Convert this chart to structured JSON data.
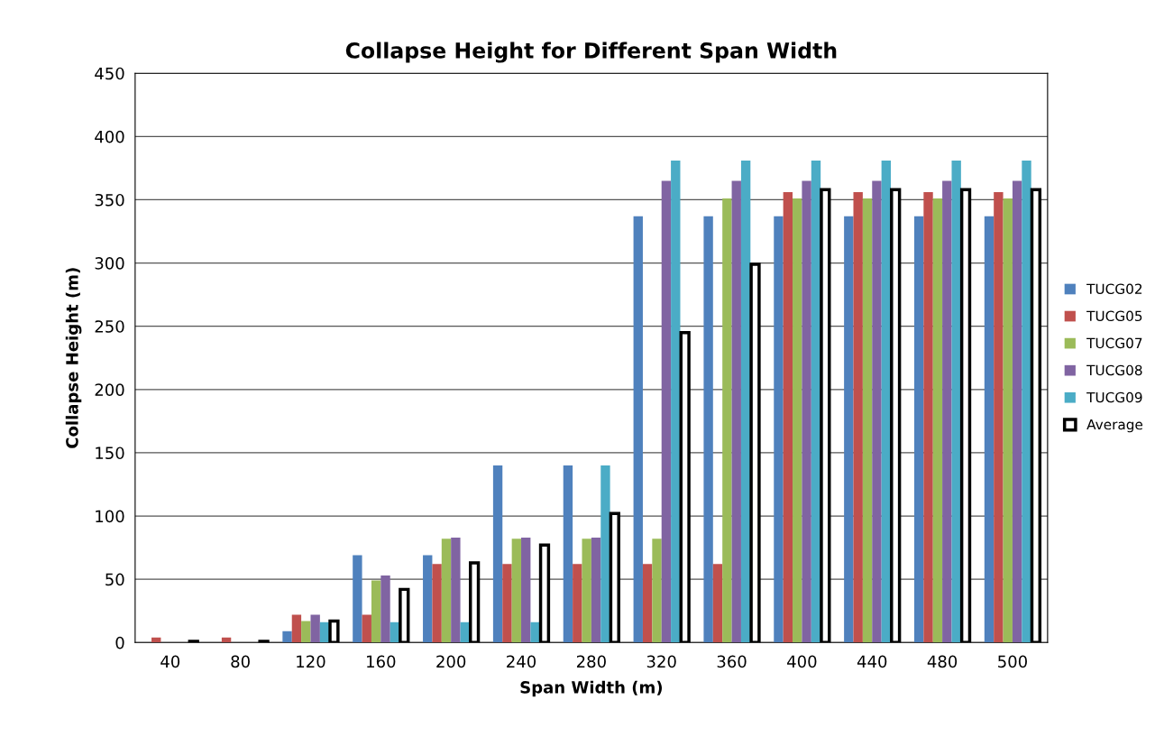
{
  "chart_data": {
    "type": "bar",
    "title": "Collapse Height for Different Span Width",
    "xlabel": "Span Width (m)",
    "ylabel": "Collapse Height (m)",
    "categories": [
      "40",
      "80",
      "120",
      "160",
      "200",
      "240",
      "280",
      "320",
      "360",
      "400",
      "440",
      "480",
      "500"
    ],
    "series": [
      {
        "name": "TUCG02",
        "color": "#4f81bd",
        "values": [
          0,
          0,
          9,
          69,
          69,
          140,
          140,
          337,
          337,
          337,
          337,
          337,
          337
        ]
      },
      {
        "name": "TUCG05",
        "color": "#c0504d",
        "values": [
          4,
          4,
          22,
          22,
          62,
          62,
          62,
          62,
          62,
          356,
          356,
          356,
          356
        ]
      },
      {
        "name": "TUCG07",
        "color": "#9bbb59",
        "values": [
          0,
          0,
          17,
          49,
          82,
          82,
          82,
          82,
          351,
          351,
          351,
          351,
          351
        ]
      },
      {
        "name": "TUCG08",
        "color": "#8064a2",
        "values": [
          0,
          0,
          22,
          53,
          83,
          83,
          83,
          365,
          365,
          365,
          365,
          365,
          365
        ]
      },
      {
        "name": "TUCG09",
        "color": "#4bacc6",
        "values": [
          0,
          0,
          16,
          16,
          16,
          16,
          140,
          381,
          381,
          381,
          381,
          381,
          381
        ]
      },
      {
        "name": "Average",
        "color": "#ffffff",
        "values": [
          1,
          1,
          17,
          42,
          63,
          77,
          102,
          245,
          299,
          358,
          358,
          358,
          358
        ]
      }
    ],
    "ylim": [
      0,
      450
    ],
    "yticks": [
      0,
      50,
      100,
      150,
      200,
      250,
      300,
      350,
      400,
      450
    ],
    "grid": "y",
    "legend": "right"
  }
}
